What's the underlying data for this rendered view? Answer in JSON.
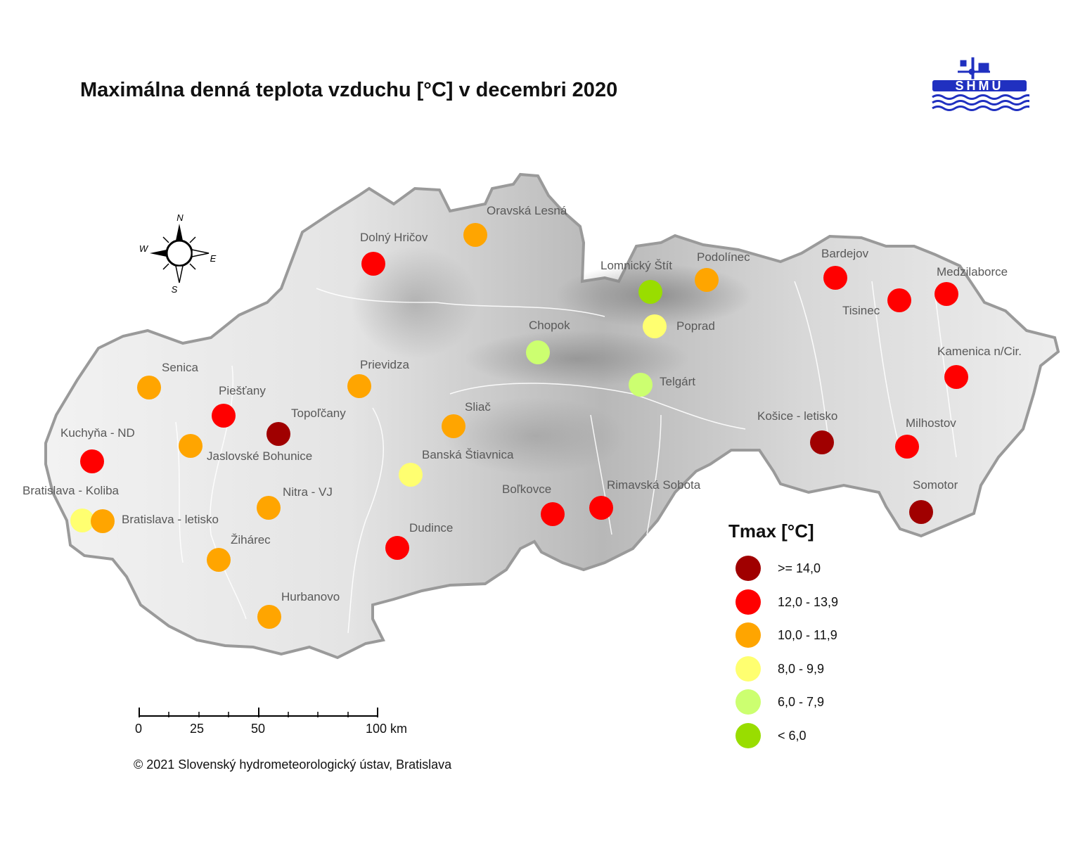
{
  "title": "Maximálna denná teplota vzduchu [°C] v decembri 2020",
  "logo_text": "SHMÚ",
  "compass": {
    "n": "N",
    "s": "S",
    "e": "E",
    "w": "W"
  },
  "legend": {
    "title": "Tmax [°C]",
    "classes": [
      {
        "label": ">= 14,0",
        "color": "#a00000"
      },
      {
        "label": "12,0 - 13,9",
        "color": "#ff0000"
      },
      {
        "label": "10,0 - 11,9",
        "color": "#ffa500"
      },
      {
        "label": "8,0 - 9,9",
        "color": "#ffff70"
      },
      {
        "label": "6,0 - 7,9",
        "color": "#ccff70"
      },
      {
        "label": "< 6,0",
        "color": "#99dd00"
      }
    ]
  },
  "scale_bar": {
    "labels": [
      "0",
      "25",
      "50",
      "100 km"
    ]
  },
  "copyright": "© 2021 Slovenský hydrometeorologický ústav, Bratislava",
  "stations": [
    {
      "name": "Oravská Lesná",
      "class": 2
    },
    {
      "name": "Dolný Hričov",
      "class": 1
    },
    {
      "name": "Lomnický Štít",
      "class": 5
    },
    {
      "name": "Podolínec",
      "class": 2
    },
    {
      "name": "Bardejov",
      "class": 1
    },
    {
      "name": "Medzilaborce",
      "class": 1
    },
    {
      "name": "Tisinec",
      "class": 1
    },
    {
      "name": "Poprad",
      "class": 3
    },
    {
      "name": "Chopok",
      "class": 4
    },
    {
      "name": "Senica",
      "class": 2
    },
    {
      "name": "Prievidza",
      "class": 2
    },
    {
      "name": "Telgárt",
      "class": 4
    },
    {
      "name": "Kamenica n/Cir.",
      "class": 1
    },
    {
      "name": "Piešťany",
      "class": 1
    },
    {
      "name": "Topoľčany",
      "class": 0
    },
    {
      "name": "Sliač",
      "class": 2
    },
    {
      "name": "Kuchyňa - ND",
      "class": 1
    },
    {
      "name": "Jaslovské Bohunice",
      "class": 2
    },
    {
      "name": "Košice - letisko",
      "class": 0
    },
    {
      "name": "Milhostov",
      "class": 1
    },
    {
      "name": "Banská Štiavnica",
      "class": 3
    },
    {
      "name": "Bratislava - Koliba",
      "class": 3
    },
    {
      "name": "Bratislava - letisko",
      "class": 2
    },
    {
      "name": "Nitra - VJ",
      "class": 2
    },
    {
      "name": "Boľkovce",
      "class": 1
    },
    {
      "name": "Rimavská Sobota",
      "class": 1
    },
    {
      "name": "Somotor",
      "class": 0
    },
    {
      "name": "Dudince",
      "class": 1
    },
    {
      "name": "Žihárec",
      "class": 2
    },
    {
      "name": "Hurbanovo",
      "class": 2
    }
  ]
}
